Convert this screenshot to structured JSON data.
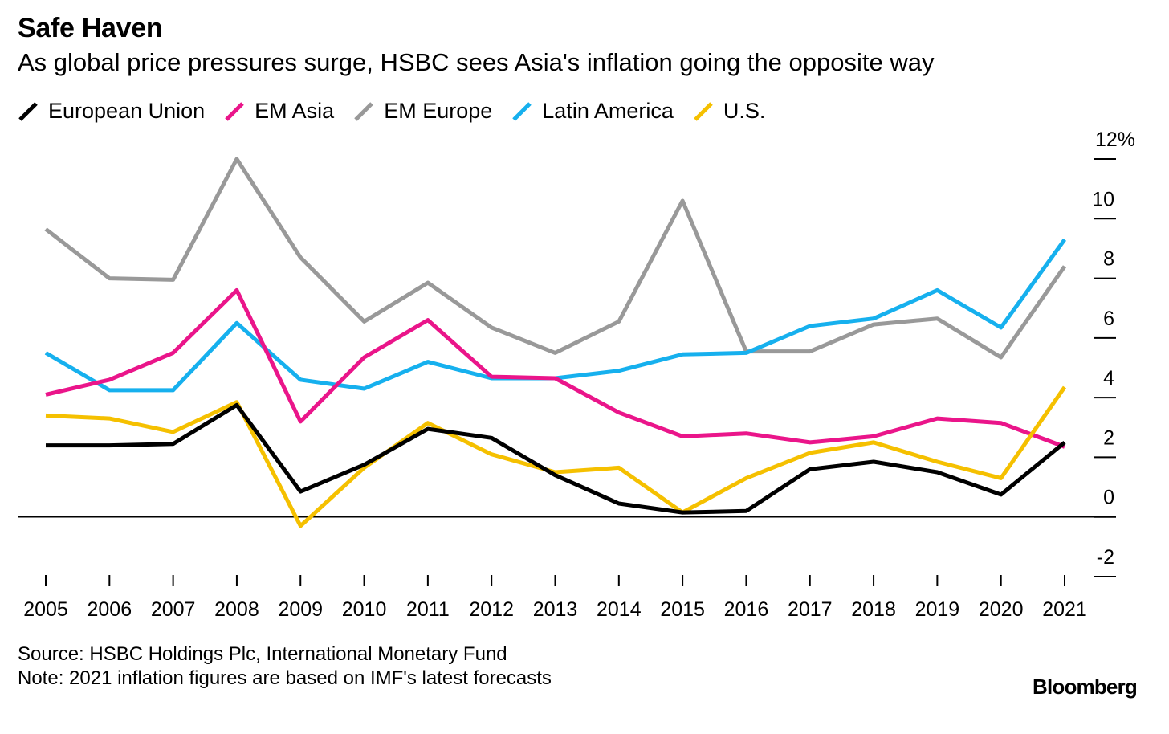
{
  "header": {
    "title": "Safe Haven",
    "subtitle": "As global price pressures surge, HSBC sees Asia's inflation going the opposite way"
  },
  "footer": {
    "source": "Source: HSBC Holdings Plc, International Monetary Fund",
    "note": "Note: 2021 inflation figures are based on IMF's latest forecasts",
    "brand": "Bloomberg"
  },
  "chart_data": {
    "type": "line",
    "title": "Safe Haven",
    "subtitle": "As global price pressures surge, HSBC sees Asia's inflation going the opposite way",
    "xlabel": "",
    "ylabel": "",
    "ylim": [
      -2,
      12
    ],
    "yticks": [
      -2,
      0,
      2,
      4,
      6,
      8,
      10,
      12
    ],
    "ytick_labels": [
      "-2",
      "0",
      "2",
      "4",
      "6",
      "8",
      "10",
      "12%"
    ],
    "y_axis_position": "right",
    "grid": false,
    "legend_position": "top-left",
    "x": [
      "2005",
      "2006",
      "2007",
      "2008",
      "2009",
      "2010",
      "2011",
      "2012",
      "2013",
      "2014",
      "2015",
      "2016",
      "2017",
      "2018",
      "2019",
      "2020",
      "2021"
    ],
    "series": [
      {
        "name": "European Union",
        "color": "#000000",
        "values": [
          2.4,
          2.4,
          2.45,
          3.75,
          0.85,
          1.75,
          2.95,
          2.65,
          1.4,
          0.45,
          0.15,
          0.2,
          1.6,
          1.85,
          1.5,
          0.75,
          2.5
        ]
      },
      {
        "name": "EM Asia",
        "color": "#ea158a",
        "values": [
          4.1,
          4.6,
          5.5,
          7.6,
          3.2,
          5.35,
          6.6,
          4.7,
          4.65,
          3.5,
          2.7,
          2.8,
          2.5,
          2.7,
          3.3,
          3.15,
          2.35
        ]
      },
      {
        "name": "EM Europe",
        "color": "#999999",
        "values": [
          9.65,
          8.0,
          7.95,
          12.0,
          8.7,
          6.55,
          7.85,
          6.35,
          5.5,
          6.55,
          10.6,
          5.55,
          5.55,
          6.45,
          6.65,
          5.35,
          8.4
        ]
      },
      {
        "name": "Latin America",
        "color": "#16b0ee",
        "values": [
          5.5,
          4.25,
          4.25,
          6.5,
          4.6,
          4.3,
          5.2,
          4.65,
          4.65,
          4.9,
          5.45,
          5.5,
          6.4,
          6.65,
          7.6,
          6.35,
          9.3
        ]
      },
      {
        "name": "U.S.",
        "color": "#f5c000",
        "values": [
          3.4,
          3.3,
          2.85,
          3.85,
          -0.3,
          1.65,
          3.15,
          2.1,
          1.5,
          1.65,
          0.15,
          1.3,
          2.15,
          2.5,
          1.85,
          1.3,
          4.35
        ]
      }
    ]
  }
}
